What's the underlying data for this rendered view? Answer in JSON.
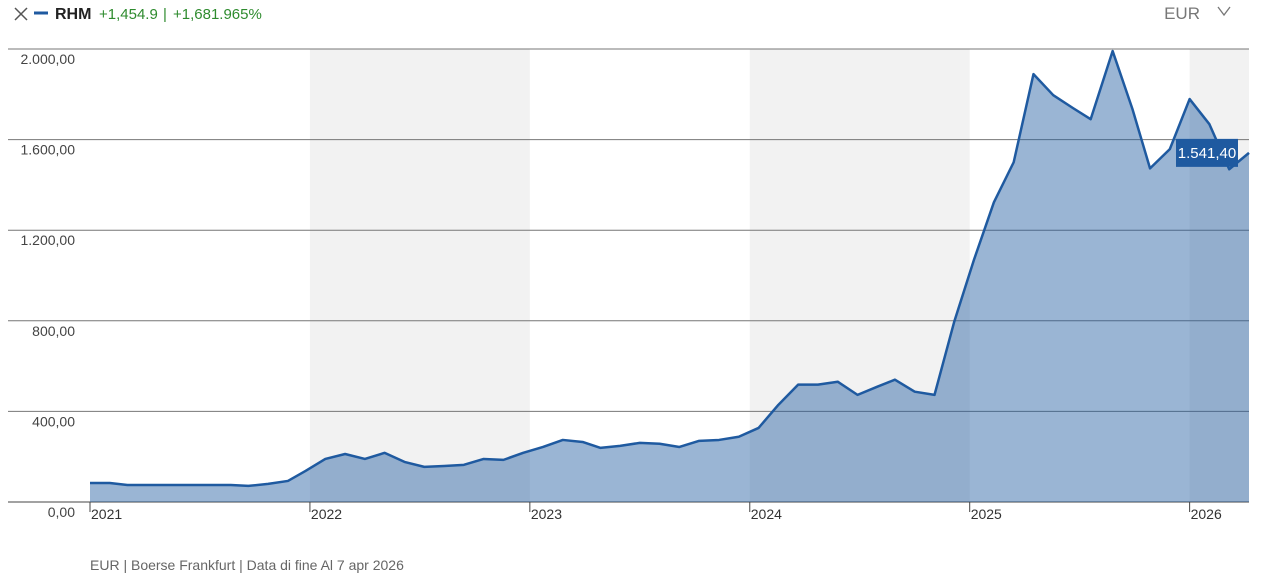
{
  "header": {
    "change": "+1,454.9",
    "separator": "|",
    "change_pct": "+1,681.965%",
    "currency": "EUR"
  },
  "chart_data": {
    "type": "area",
    "series": [
      {
        "name": "RHM",
        "color": "#1f5aa0",
        "x": [
          2021.0,
          2021.09,
          2021.17,
          2021.27,
          2021.36,
          2021.45,
          2021.55,
          2021.64,
          2021.72,
          2021.81,
          2021.9,
          2021.98,
          2022.07,
          2022.16,
          2022.25,
          2022.34,
          2022.43,
          2022.52,
          2022.61,
          2022.7,
          2022.79,
          2022.88,
          2022.97,
          2023.06,
          2023.15,
          2023.24,
          2023.32,
          2023.41,
          2023.5,
          2023.59,
          2023.68,
          2023.77,
          2023.86,
          2023.95,
          2024.04,
          2024.13,
          2024.22,
          2024.31,
          2024.4,
          2024.49,
          2024.58,
          2024.66,
          2024.75,
          2024.84,
          2024.93,
          2025.02,
          2025.11,
          2025.2,
          2025.29,
          2025.38,
          2025.47,
          2025.55,
          2025.65,
          2025.74,
          2025.82,
          2025.91,
          2026.0,
          2026.09,
          2026.18,
          2026.27
        ],
        "values": [
          84,
          84,
          75,
          75,
          75,
          75,
          75,
          75,
          71,
          80,
          93,
          137,
          190,
          212,
          190,
          217,
          177,
          155,
          159,
          164,
          190,
          186,
          217,
          243,
          274,
          265,
          239,
          248,
          261,
          257,
          243,
          270,
          274,
          288,
          327,
          429,
          518,
          518,
          531,
          473,
          509,
          540,
          487,
          473,
          797,
          1071,
          1323,
          1500,
          1889,
          1796,
          1739,
          1690,
          1991,
          1735,
          1473,
          1558,
          1779,
          1668,
          1469,
          1541.4
        ],
        "value_labels": [
          null,
          null,
          null,
          null,
          null,
          null,
          null,
          null,
          null,
          null,
          null,
          null,
          null,
          null,
          null,
          null,
          null,
          null,
          null,
          null,
          null,
          null,
          null,
          null,
          null,
          null,
          null,
          null,
          null,
          null,
          null,
          null,
          null,
          null,
          null,
          null,
          null,
          null,
          null,
          null,
          null,
          null,
          null,
          null,
          null,
          null,
          null,
          null,
          null,
          null,
          null,
          null,
          null,
          null,
          null,
          null,
          null,
          null,
          null,
          "1.541,40"
        ]
      }
    ],
    "xlim": [
      2021,
      2026.27
    ],
    "xticks": [
      2021,
      2022,
      2023,
      2024,
      2025,
      2026
    ],
    "ylim": [
      0,
      2000
    ],
    "yticks": [
      {
        "value": 0,
        "label": "0,00"
      },
      {
        "value": 400,
        "label": "400,00"
      },
      {
        "value": 800,
        "label": "800,00"
      },
      {
        "value": 1200,
        "label": "1.200,00"
      },
      {
        "value": 1600,
        "label": "1.600,00"
      },
      {
        "value": 2000,
        "label": "2.000,00"
      }
    ],
    "grid": true,
    "alternate_year_shading": true
  },
  "footer": "EUR | Boerse Frankfurt | Data di fine Al 7 apr 2026"
}
